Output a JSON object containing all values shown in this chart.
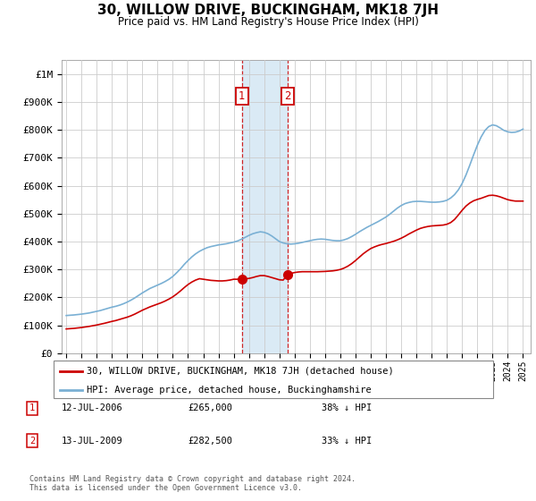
{
  "title": "30, WILLOW DRIVE, BUCKINGHAM, MK18 7JH",
  "subtitle": "Price paid vs. HM Land Registry's House Price Index (HPI)",
  "legend_line1": "30, WILLOW DRIVE, BUCKINGHAM, MK18 7JH (detached house)",
  "legend_line2": "HPI: Average price, detached house, Buckinghamshire",
  "footer": "Contains HM Land Registry data © Crown copyright and database right 2024.\nThis data is licensed under the Open Government Licence v3.0.",
  "sale1_price": 265000,
  "sale1_label": "12-JUL-2006",
  "sale1_pct": "38% ↓ HPI",
  "sale2_price": 282500,
  "sale2_label": "13-JUL-2009",
  "sale2_pct": "33% ↓ HPI",
  "sale1_year": 2006.542,
  "sale2_year": 2009.542,
  "red_color": "#cc0000",
  "blue_color": "#7ab0d4",
  "shade_color": "#daeaf5",
  "grid_color": "#cccccc",
  "marker_box_color": "#cc0000",
  "ylim": [
    0,
    1050000
  ],
  "yticks": [
    0,
    100000,
    200000,
    300000,
    400000,
    500000,
    600000,
    700000,
    800000,
    900000,
    1000000
  ],
  "ytick_labels": [
    "£0",
    "£100K",
    "£200K",
    "£300K",
    "£400K",
    "£500K",
    "£600K",
    "£700K",
    "£800K",
    "£900K",
    "£1M"
  ],
  "years_hpi": [
    1995,
    1995.25,
    1995.5,
    1995.75,
    1996,
    1996.25,
    1996.5,
    1996.75,
    1997,
    1997.25,
    1997.5,
    1997.75,
    1998,
    1998.25,
    1998.5,
    1998.75,
    1999,
    1999.25,
    1999.5,
    1999.75,
    2000,
    2000.25,
    2000.5,
    2000.75,
    2001,
    2001.25,
    2001.5,
    2001.75,
    2002,
    2002.25,
    2002.5,
    2002.75,
    2003,
    2003.25,
    2003.5,
    2003.75,
    2004,
    2004.25,
    2004.5,
    2004.75,
    2005,
    2005.25,
    2005.5,
    2005.75,
    2006,
    2006.25,
    2006.5,
    2006.75,
    2007,
    2007.25,
    2007.5,
    2007.75,
    2008,
    2008.25,
    2008.5,
    2008.75,
    2009,
    2009.25,
    2009.5,
    2009.75,
    2010,
    2010.25,
    2010.5,
    2010.75,
    2011,
    2011.25,
    2011.5,
    2011.75,
    2012,
    2012.25,
    2012.5,
    2012.75,
    2013,
    2013.25,
    2013.5,
    2013.75,
    2014,
    2014.25,
    2014.5,
    2014.75,
    2015,
    2015.25,
    2015.5,
    2015.75,
    2016,
    2016.25,
    2016.5,
    2016.75,
    2017,
    2017.25,
    2017.5,
    2017.75,
    2018,
    2018.25,
    2018.5,
    2018.75,
    2019,
    2019.25,
    2019.5,
    2019.75,
    2020,
    2020.25,
    2020.5,
    2020.75,
    2021,
    2021.25,
    2021.5,
    2021.75,
    2022,
    2022.25,
    2022.5,
    2022.75,
    2023,
    2023.25,
    2023.5,
    2023.75,
    2024,
    2024.25,
    2024.5,
    2024.75,
    2025
  ],
  "hpi_values": [
    135000,
    136000,
    137000,
    138500,
    140000,
    142000,
    144000,
    147000,
    150000,
    153000,
    157000,
    161000,
    165000,
    168000,
    172000,
    177000,
    183000,
    190000,
    198000,
    207000,
    216000,
    224000,
    232000,
    238000,
    244000,
    250000,
    257000,
    265000,
    275000,
    288000,
    302000,
    318000,
    332000,
    345000,
    356000,
    365000,
    372000,
    378000,
    382000,
    385000,
    388000,
    390000,
    392000,
    395000,
    398000,
    402000,
    408000,
    415000,
    422000,
    428000,
    432000,
    435000,
    433000,
    428000,
    420000,
    410000,
    400000,
    395000,
    392000,
    391000,
    392000,
    394000,
    397000,
    400000,
    403000,
    406000,
    408000,
    409000,
    408000,
    406000,
    404000,
    403000,
    403000,
    406000,
    411000,
    418000,
    426000,
    435000,
    443000,
    451000,
    458000,
    465000,
    472000,
    480000,
    488000,
    498000,
    509000,
    520000,
    529000,
    536000,
    540000,
    543000,
    544000,
    544000,
    543000,
    542000,
    541000,
    541000,
    542000,
    544000,
    548000,
    556000,
    568000,
    585000,
    608000,
    638000,
    673000,
    710000,
    745000,
    775000,
    798000,
    812000,
    818000,
    815000,
    807000,
    798000,
    793000,
    791000,
    792000,
    796000,
    803000
  ],
  "years_red": [
    1995,
    1995.25,
    1995.5,
    1995.75,
    1996,
    1996.25,
    1996.5,
    1996.75,
    1997,
    1997.25,
    1997.5,
    1997.75,
    1998,
    1998.25,
    1998.5,
    1998.75,
    1999,
    1999.25,
    1999.5,
    1999.75,
    2000,
    2000.25,
    2000.5,
    2000.75,
    2001,
    2001.25,
    2001.5,
    2001.75,
    2002,
    2002.25,
    2002.5,
    2002.75,
    2003,
    2003.25,
    2003.5,
    2003.75,
    2004,
    2004.25,
    2004.5,
    2004.75,
    2005,
    2005.25,
    2005.5,
    2005.75,
    2006,
    2006.25,
    2006.542,
    2006.75,
    2007,
    2007.25,
    2007.5,
    2007.75,
    2008,
    2008.25,
    2008.5,
    2008.75,
    2009,
    2009.25,
    2009.542,
    2009.75,
    2010,
    2010.25,
    2010.5,
    2010.75,
    2011,
    2011.25,
    2011.5,
    2011.75,
    2012,
    2012.25,
    2012.5,
    2012.75,
    2013,
    2013.25,
    2013.5,
    2013.75,
    2014,
    2014.25,
    2014.5,
    2014.75,
    2015,
    2015.25,
    2015.5,
    2015.75,
    2016,
    2016.25,
    2016.5,
    2016.75,
    2017,
    2017.25,
    2017.5,
    2017.75,
    2018,
    2018.25,
    2018.5,
    2018.75,
    2019,
    2019.25,
    2019.5,
    2019.75,
    2020,
    2020.25,
    2020.5,
    2020.75,
    2021,
    2021.25,
    2021.5,
    2021.75,
    2022,
    2022.25,
    2022.5,
    2022.75,
    2023,
    2023.25,
    2023.5,
    2023.75,
    2024,
    2024.25,
    2024.5,
    2024.75,
    2025
  ],
  "red_values": [
    87000,
    88000,
    89000,
    90500,
    92000,
    94000,
    96000,
    98500,
    101000,
    104000,
    107000,
    110500,
    114000,
    117000,
    121000,
    125000,
    129000,
    134000,
    140000,
    147000,
    154000,
    160000,
    166000,
    171000,
    176000,
    181000,
    187000,
    194000,
    202000,
    212000,
    223000,
    235000,
    246000,
    255000,
    262000,
    267000,
    265000,
    263000,
    261000,
    260000,
    259000,
    259000,
    260000,
    262000,
    265000,
    265000,
    265000,
    266000,
    268000,
    271000,
    275000,
    278000,
    278000,
    275000,
    271000,
    267000,
    263000,
    262000,
    282500,
    286000,
    289000,
    291000,
    292000,
    292000,
    292000,
    292000,
    292000,
    292500,
    293000,
    294000,
    295000,
    297000,
    300000,
    305000,
    312000,
    321000,
    332000,
    344000,
    356000,
    366000,
    375000,
    381000,
    386000,
    390000,
    393000,
    397000,
    401000,
    406000,
    412000,
    419000,
    427000,
    434000,
    441000,
    447000,
    451000,
    454000,
    456000,
    457000,
    458000,
    459000,
    462000,
    468000,
    479000,
    495000,
    512000,
    527000,
    538000,
    546000,
    551000,
    555000,
    560000,
    565000,
    566000,
    564000,
    560000,
    555000,
    550000,
    547000,
    545000,
    545000,
    545000
  ]
}
